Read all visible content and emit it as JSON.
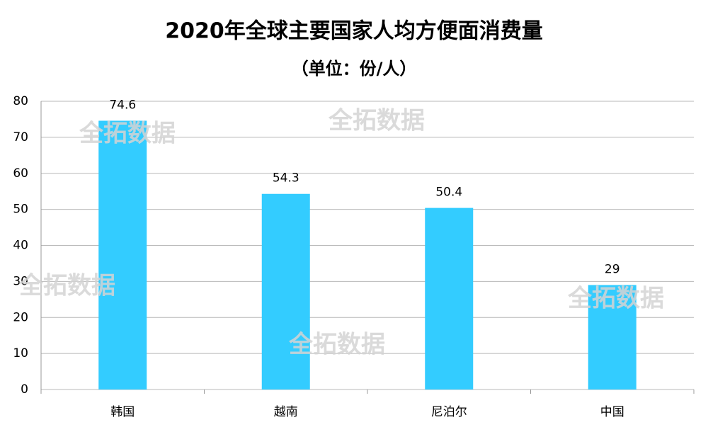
{
  "chart_data": {
    "type": "bar",
    "title": "2020年全球主要国家人均方便面消费量",
    "subtitle": "（单位：份/人）",
    "categories": [
      "韩国",
      "越南",
      "尼泊尔",
      "中国"
    ],
    "values": [
      74.6,
      54.3,
      50.4,
      29
    ],
    "color": "#33ccff",
    "ylim": [
      0,
      80
    ],
    "yticks": [
      0,
      10,
      20,
      30,
      40,
      50,
      60,
      70,
      80
    ],
    "grid": true,
    "watermark": "全拓数据"
  }
}
